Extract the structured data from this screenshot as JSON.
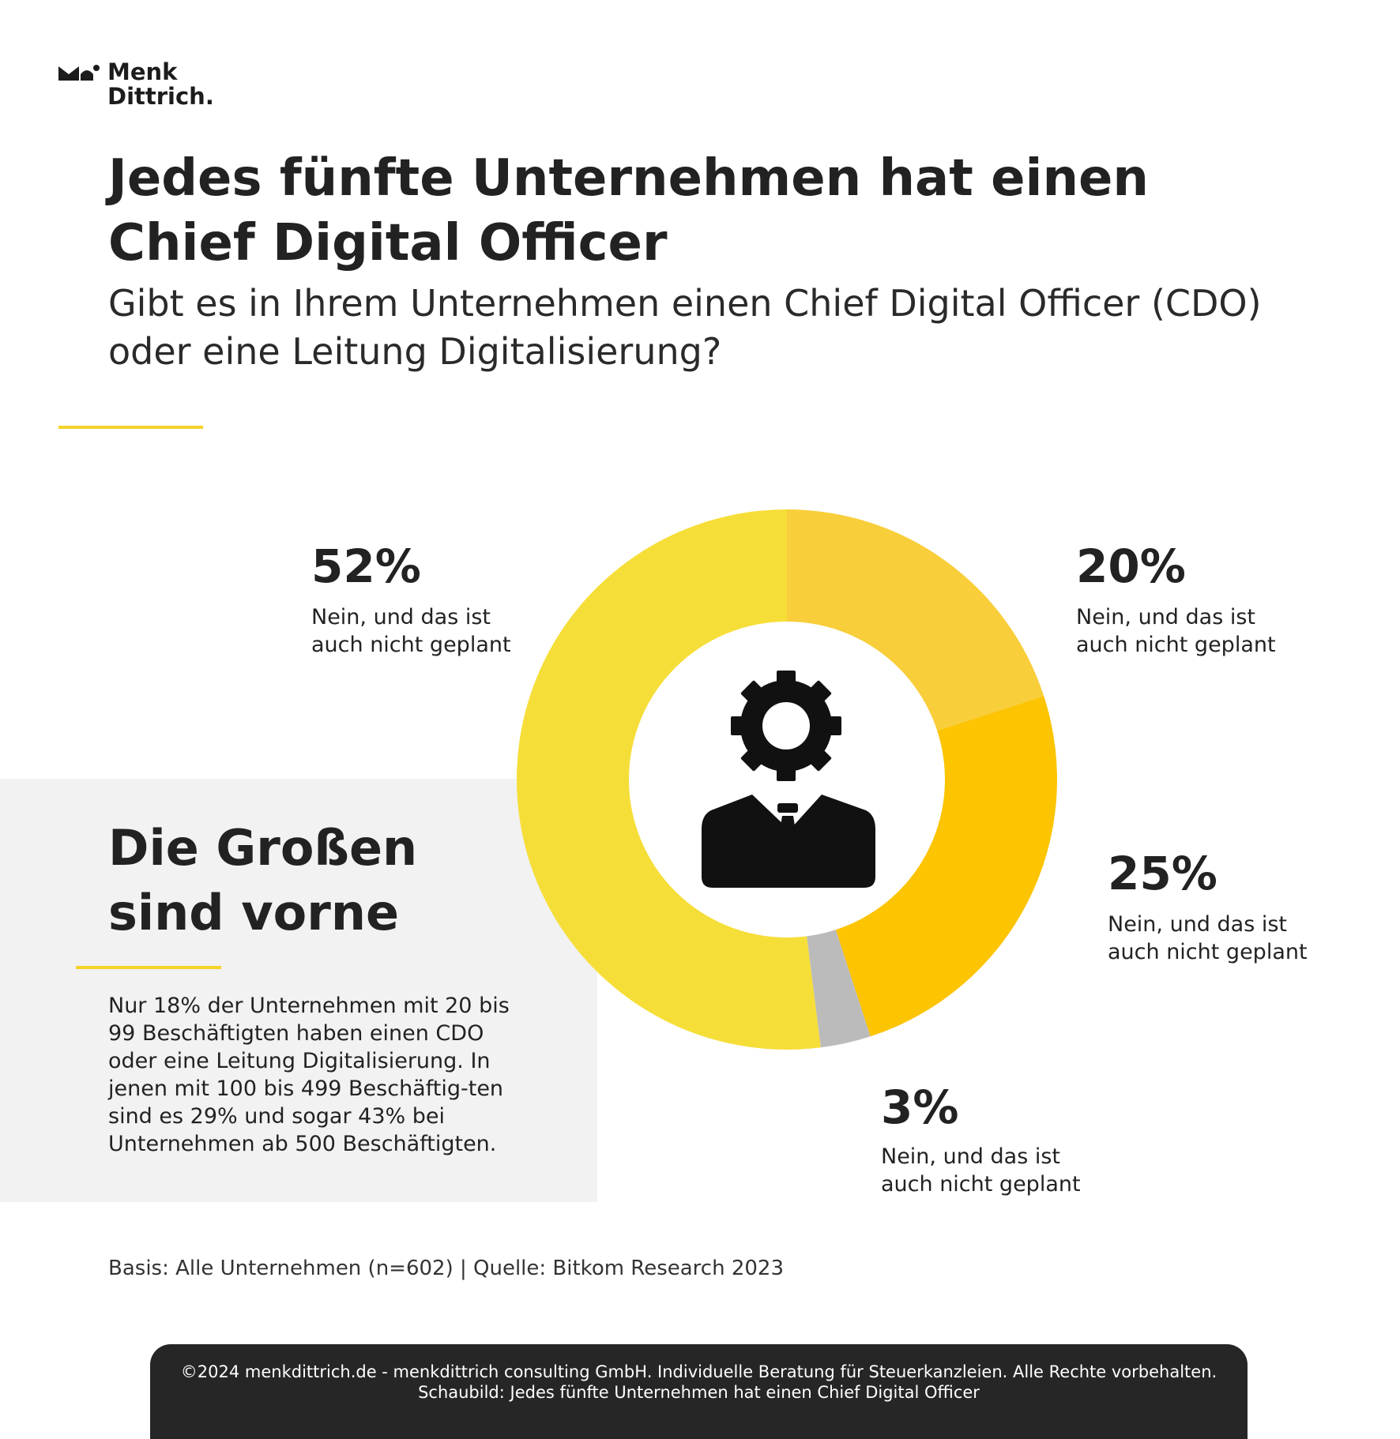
{
  "brand": {
    "name_line1": "Menk",
    "name_line2": "Dittrich.",
    "accent_color": "#f5d22a"
  },
  "header": {
    "title": "Jedes fünfte Unternehmen hat einen Chief Digital Officer",
    "subtitle": "Gibt es in Ihrem Unternehmen einen Chief Digital Officer (CDO) oder eine Leitung Digitalisierung?"
  },
  "chart_data": {
    "type": "pie",
    "variant": "donut",
    "center_icon": "person-with-gear-head-icon",
    "slices": [
      {
        "value": 52,
        "value_label": "52%",
        "label": "Nein, und das ist auch nicht geplant",
        "color": "#f6de39"
      },
      {
        "value": 20,
        "value_label": "20%",
        "label": "Nein, und das ist auch nicht geplant",
        "color": "#f8ce3a"
      },
      {
        "value": 25,
        "value_label": "25%",
        "label": "Nein, und das ist auch nicht geplant",
        "color": "#fcc401"
      },
      {
        "value": 3,
        "value_label": "3%",
        "label": "Nein, und das ist auch nicht geplant",
        "color": "#bbbbbb"
      }
    ]
  },
  "sidebar": {
    "heading": "Die Großen sind vorne",
    "text": "Nur 18% der Unternehmen mit 20 bis 99 Beschäftigten haben einen CDO oder eine Leitung Digitalisierung. In jenen mit 100 bis 499 Beschäftig-ten sind es 29% und sogar 43% bei Unternehmen ab 500 Beschäftigten."
  },
  "source": "Basis: Alle Unternehmen (n=602) | Quelle: Bitkom Research 2023",
  "footer": {
    "line1": "©2024 menkdittrich.de - menkdittrich consulting GmbH. Individuelle Beratung für Steuerkanzleien. Alle Rechte vorbehalten.",
    "line2": "Schaubild: Jedes fünfte Unternehmen hat einen Chief Digital Officer"
  }
}
